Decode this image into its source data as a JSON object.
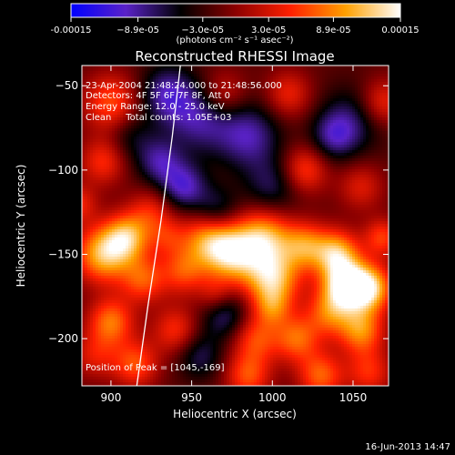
{
  "chart_data": {
    "type": "heatmap",
    "title": "Reconstructed RHESSI Image",
    "xlabel": "Heliocentric X (arcsec)",
    "ylabel": "Heliocentric Y (arcsec)",
    "xlim": [
      882,
      1072
    ],
    "ylim": [
      -228,
      -38
    ],
    "x_ticks": [
      900,
      950,
      1000,
      1050
    ],
    "y_ticks": [
      -50,
      -100,
      -150,
      -200
    ],
    "colorbar": {
      "range": [
        -0.00015,
        0.00015
      ],
      "tick_values": [
        -0.00015,
        -8.9e-05,
        -3e-05,
        3e-05,
        8.9e-05,
        0.00015
      ],
      "tick_labels": [
        "-0.00015",
        "−8.9e-05",
        "−3.0e-05",
        "3.0e-05",
        "8.9e-05",
        "0.00015"
      ],
      "unit_label": "(photons cm⁻² s⁻¹ asec⁻²)",
      "colormap": [
        "#0000ff",
        "#5a22c8",
        "#000000",
        "#8c0000",
        "#ff2000",
        "#ffa000",
        "#ffffff"
      ]
    },
    "info_lines": [
      "23-Apr-2004 21:48:24.000 to 21:48:56.000",
      "Detectors: 4F 5F 6F 7F 8F, Att 0",
      "Energy Range: 12.0 - 25.0 keV",
      "Clean     Total counts: 1.05E+03"
    ],
    "peak_label": "Position of Peak = [1045,-169]",
    "peak": [
      1045,
      -169
    ],
    "limb_curve": [
      [
        943,
        -38
      ],
      [
        938,
        -80
      ],
      [
        931,
        -130
      ],
      [
        923,
        -180
      ],
      [
        916,
        -228
      ]
    ],
    "blobs": [
      [
        900,
        -60,
        0.55,
        12
      ],
      [
        895,
        -95,
        0.45,
        10
      ],
      [
        912,
        -80,
        -0.25,
        10
      ],
      [
        935,
        -55,
        -0.5,
        12
      ],
      [
        925,
        -125,
        0.4,
        10
      ],
      [
        955,
        -70,
        -0.45,
        14
      ],
      [
        970,
        -55,
        0.35,
        10
      ],
      [
        985,
        -80,
        -0.5,
        14
      ],
      [
        1010,
        -55,
        0.4,
        10
      ],
      [
        1020,
        -100,
        0.5,
        10
      ],
      [
        1050,
        -70,
        -0.35,
        14
      ],
      [
        1055,
        -110,
        0.35,
        10
      ],
      [
        1068,
        -60,
        0.45,
        10
      ],
      [
        945,
        -110,
        -0.55,
        10
      ],
      [
        965,
        -125,
        -0.45,
        10
      ],
      [
        1000,
        -110,
        -0.35,
        12
      ],
      [
        895,
        -150,
        0.85,
        12
      ],
      [
        910,
        -140,
        0.75,
        10
      ],
      [
        920,
        -165,
        0.55,
        10
      ],
      [
        900,
        -190,
        0.65,
        10
      ],
      [
        915,
        -215,
        0.55,
        10
      ],
      [
        890,
        -210,
        0.35,
        10
      ],
      [
        945,
        -160,
        0.5,
        10
      ],
      [
        940,
        -195,
        0.45,
        10
      ],
      [
        960,
        -140,
        0.7,
        12
      ],
      [
        975,
        -150,
        0.85,
        12
      ],
      [
        995,
        -140,
        0.8,
        12
      ],
      [
        1000,
        -165,
        0.9,
        12
      ],
      [
        1020,
        -145,
        0.65,
        10
      ],
      [
        1040,
        -150,
        0.85,
        10
      ],
      [
        1045,
        -169,
        1.0,
        10
      ],
      [
        1060,
        -170,
        0.95,
        10
      ],
      [
        1055,
        -195,
        0.7,
        10
      ],
      [
        1035,
        -185,
        0.55,
        10
      ],
      [
        1015,
        -200,
        0.6,
        10
      ],
      [
        990,
        -200,
        0.5,
        10
      ],
      [
        970,
        -185,
        -0.45,
        10
      ],
      [
        955,
        -210,
        -0.35,
        10
      ],
      [
        965,
        -175,
        0.35,
        8
      ],
      [
        985,
        -222,
        0.55,
        10
      ],
      [
        1030,
        -222,
        0.6,
        10
      ],
      [
        1060,
        -220,
        0.45,
        10
      ],
      [
        1068,
        -140,
        0.5,
        8
      ],
      [
        930,
        -95,
        -0.45,
        10
      ],
      [
        1038,
        -80,
        -0.4,
        10
      ],
      [
        935,
        -140,
        0.3,
        8
      ],
      [
        880,
        -120,
        0.4,
        8
      ],
      [
        1000,
        -182,
        0.4,
        8
      ]
    ]
  },
  "footer": {
    "date": "16-Jun-2013 14:47"
  }
}
